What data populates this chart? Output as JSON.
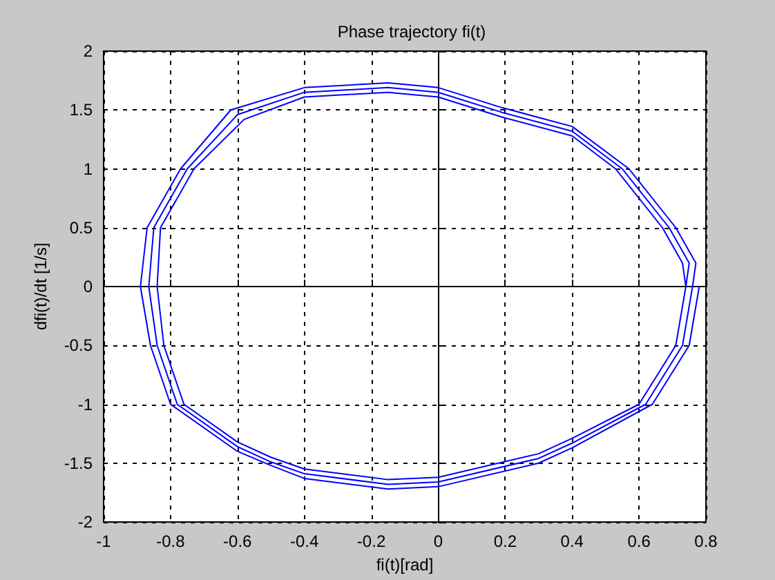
{
  "chart_data": {
    "type": "line",
    "title": "Phase trajectory fi(t)",
    "xlabel": "fi(t)[rad]",
    "ylabel": "dfi(t)/dt [1/s]",
    "xlim": [
      -1,
      0.8
    ],
    "xticks": [
      -1,
      -0.8,
      -0.6,
      -0.4,
      -0.2,
      0,
      0.2,
      0.4,
      0.6,
      0.8
    ],
    "ylim": [
      -2,
      2
    ],
    "yticks": [
      -2,
      -1.5,
      -1,
      -0.5,
      0,
      0.5,
      1,
      1.5,
      2
    ],
    "grid": true,
    "series": [
      {
        "color": "#0000ff",
        "x": [
          0.78,
          0.75,
          0.64,
          0.4,
          0.3,
          0,
          -0.15,
          -0.4,
          -0.5,
          -0.6,
          -0.8,
          -0.86,
          -0.89,
          -0.87,
          -0.77,
          -0.62,
          -0.4,
          -0.15,
          0,
          0.19,
          0.4,
          0.57,
          0.71,
          0.77,
          0.76,
          0.73,
          0.62,
          0.4,
          0.3,
          0,
          -0.15,
          -0.4,
          -0.5,
          -0.6,
          -0.78,
          -0.84,
          -0.865,
          -0.85,
          -0.75,
          -0.6,
          -0.4,
          -0.15,
          0,
          0.19,
          0.4,
          0.55,
          0.69,
          0.75,
          0.74,
          0.71,
          0.6,
          0.4,
          0.3,
          0,
          -0.15,
          -0.4,
          -0.5,
          -0.6,
          -0.76,
          -0.82,
          -0.84,
          -0.83,
          -0.73,
          -0.58,
          -0.4,
          -0.15,
          0,
          0.19,
          0.4,
          0.53,
          0.67,
          0.73,
          0.74
        ],
        "values": [
          0,
          -0.5,
          -1,
          -1.37,
          -1.5,
          -1.7,
          -1.72,
          -1.63,
          -1.52,
          -1.4,
          -1,
          -0.5,
          0,
          0.5,
          1,
          1.5,
          1.69,
          1.73,
          1.69,
          1.52,
          1.36,
          1,
          0.5,
          0.2,
          0,
          -0.5,
          -1,
          -1.33,
          -1.46,
          -1.66,
          -1.68,
          -1.59,
          -1.49,
          -1.36,
          -1,
          -0.5,
          0,
          0.5,
          1,
          1.46,
          1.65,
          1.69,
          1.65,
          1.48,
          1.32,
          1,
          0.5,
          0.2,
          0,
          -0.5,
          -1,
          -1.29,
          -1.42,
          -1.62,
          -1.64,
          -1.55,
          -1.45,
          -1.32,
          -1,
          -0.5,
          0,
          0.5,
          1,
          1.42,
          1.61,
          1.65,
          1.61,
          1.44,
          1.28,
          1,
          0.5,
          0.2,
          0
        ]
      }
    ]
  }
}
